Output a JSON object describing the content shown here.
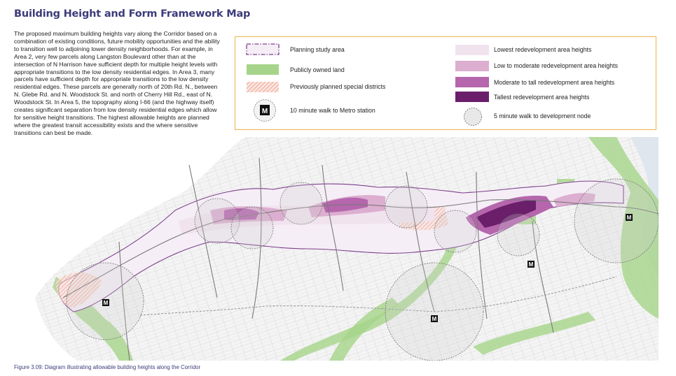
{
  "page": {
    "title": "Building Height and Form Framework Map",
    "intro": "The proposed maximum building heights vary along the Corridor based on a combination of existing conditions, future mobility opportunities and the ability to transition well to adjoining lower density neighborhoods. For example, in Area 2, very few parcels along Langston Boulevard other than at the intersection of N Harrison have sufficient depth for multiple height levels with appropriate transitions to the low density residential edges. In Area 3, many parcels have sufficient depth for appropriate transitions to the low density residential edges. These parcels are generally north of 20th Rd. N., between N. Glebe Rd. and N. Woodstock St. and north of Cherry Hill Rd., east of N. Woodstock St. In Area 5, the topography along I-66 (and the highway itself) creates significant separation from low density residential edges which allow for sensitive height transitions. The highest allowable heights are planned where the greatest transit accessibility exists and the where sensitive transitions can best be made.",
    "caption": "Figure 3.09:  Diagram illustrating allowable building heights along the Corridor"
  },
  "legend": {
    "study_area": "Planning study area",
    "public_land": "Publicly owned land",
    "special_districts": "Previously planned special districts",
    "metro_walk": "10 minute walk to Metro station",
    "lowest": "Lowest redevelopment area heights",
    "low_moderate": "Low to moderate redevelopment area heights",
    "moderate_tall": "Moderate to tall redevelopment area heights",
    "tallest": "Tallest redevelopment area heights",
    "node_walk": "5 minute walk to development node",
    "metro_glyph": "M"
  },
  "colors": {
    "title": "#3c3c7a",
    "legend_border": "#f0b44c",
    "study_area_outline": "#7d3f8c",
    "public_land": "#a6d48a",
    "special_districts": "#e89a8a",
    "lowest": "#f1e3ee",
    "low_moderate": "#dcaed0",
    "moderate_tall": "#b566ad",
    "tallest": "#6b1f6b"
  },
  "map": {
    "metro_glyph": "M"
  }
}
